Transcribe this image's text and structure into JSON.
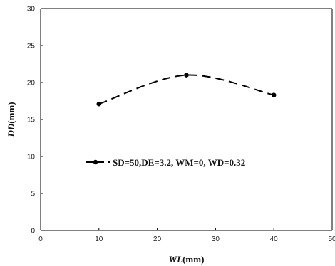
{
  "chart_data": {
    "type": "line",
    "title": "",
    "xlabel": {
      "italic": "WL",
      "unit": "(mm)"
    },
    "ylabel": {
      "italic": "DD",
      "unit": "(mm)"
    },
    "xlim": [
      0,
      50
    ],
    "ylim": [
      0,
      30
    ],
    "xticks": [
      0,
      10,
      20,
      30,
      40,
      50
    ],
    "yticks": [
      0,
      5,
      10,
      15,
      20,
      25,
      30
    ],
    "grid": false,
    "legend_position": "center-left",
    "series": [
      {
        "name": "SD=50,DE=3.2, WM=0, WD=0.32",
        "x": [
          10,
          25,
          40
        ],
        "y": [
          17.1,
          21.0,
          18.3
        ],
        "color": "#000000",
        "line_style": "dashed",
        "marker": "circle"
      }
    ]
  }
}
